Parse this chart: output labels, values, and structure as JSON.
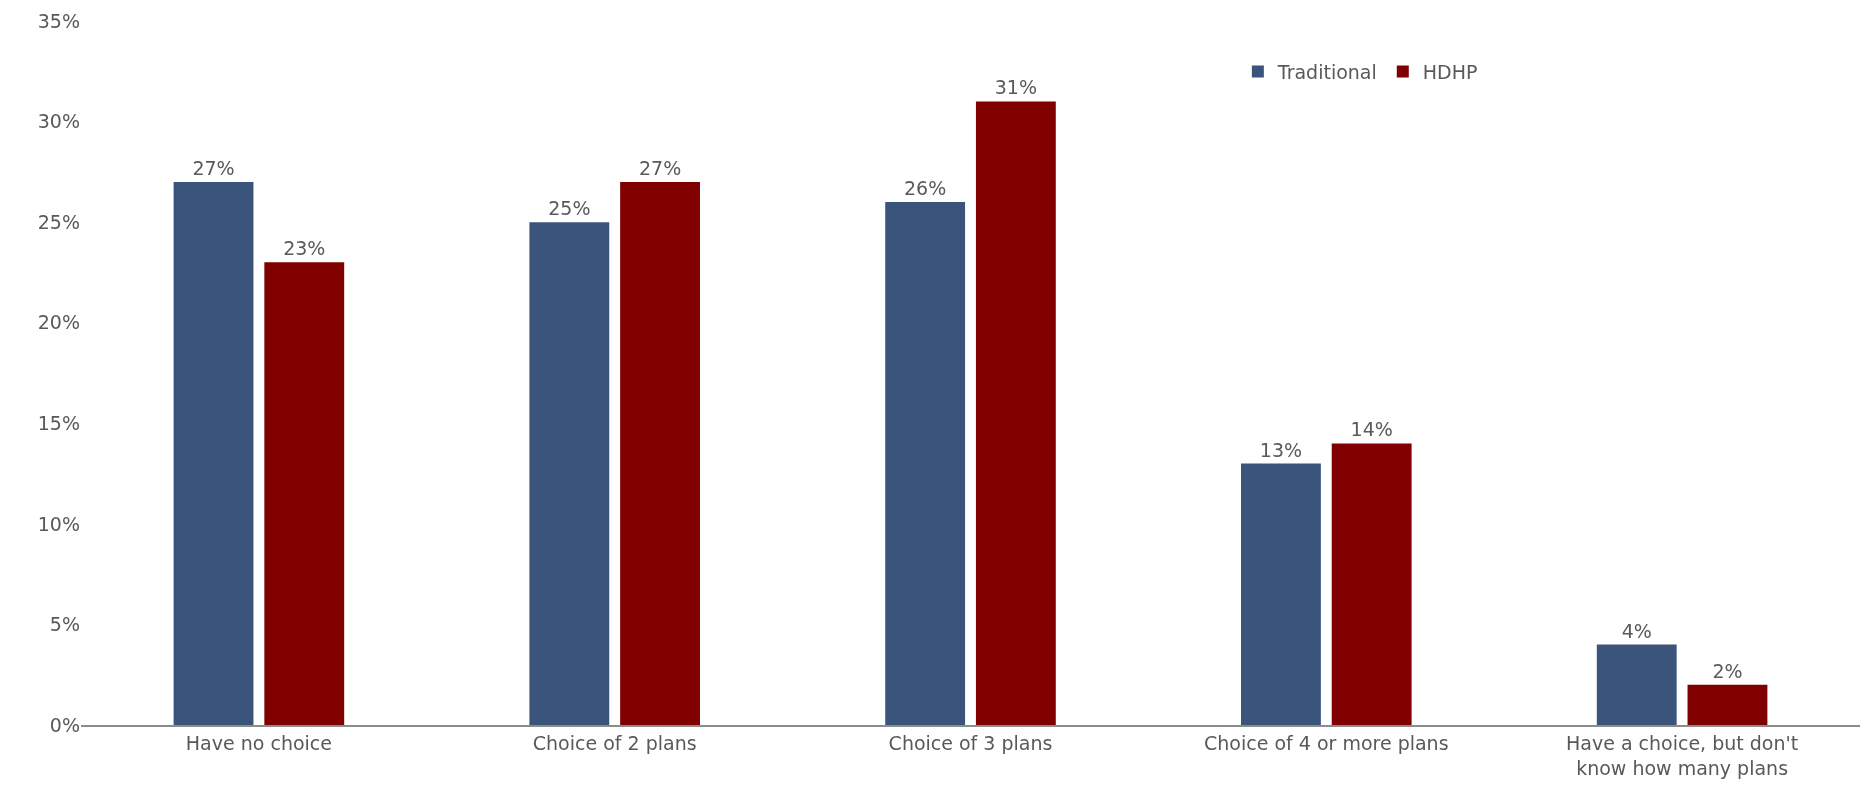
{
  "chart_data": {
    "type": "bar",
    "categories": [
      "Have no choice",
      "Choice of 2 plans",
      "Choice of 3 plans",
      "Choice of 4 or more plans",
      "Have a choice, but don't know how many plans"
    ],
    "series": [
      {
        "name": "Traditional",
        "color": "#3a547c",
        "values": [
          27,
          25,
          26,
          13,
          4
        ],
        "value_labels": [
          "27%",
          "25%",
          "26%",
          "13%",
          "4%"
        ]
      },
      {
        "name": "HDHP",
        "color": "#800000",
        "values": [
          23,
          27,
          31,
          14,
          2
        ],
        "value_labels": [
          "23%",
          "27%",
          "31%",
          "14%",
          "2%"
        ]
      }
    ],
    "ylim": [
      0,
      35
    ],
    "yticks": [
      {
        "value": 0,
        "label": "0%"
      },
      {
        "value": 5,
        "label": "5%"
      },
      {
        "value": 10,
        "label": "10%"
      },
      {
        "value": 15,
        "label": "15%"
      },
      {
        "value": 20,
        "label": "20%"
      },
      {
        "value": 25,
        "label": "25%"
      },
      {
        "value": 30,
        "label": "30%"
      },
      {
        "value": 35,
        "label": "35%"
      }
    ],
    "grid": false,
    "legend": "top right"
  }
}
